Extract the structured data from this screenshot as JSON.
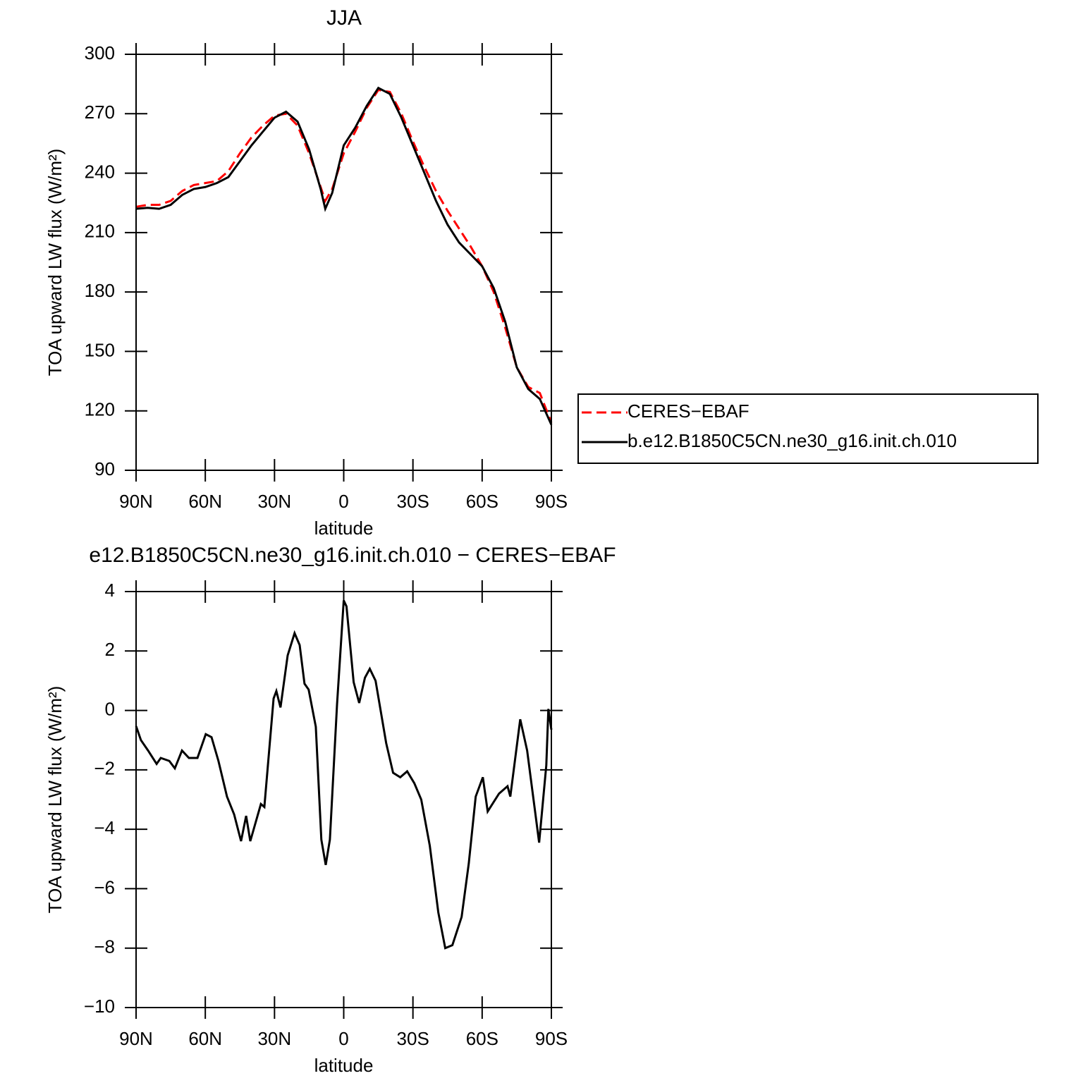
{
  "chart_data": [
    {
      "type": "line",
      "title": "JJA",
      "xlabel": "latitude",
      "ylabel": "TOA upward LW flux (W/m²)",
      "x": [
        90,
        85,
        80,
        75,
        70,
        65,
        60,
        55,
        50,
        45,
        40,
        35,
        30,
        25,
        20,
        15,
        10,
        8,
        5,
        0,
        -5,
        -10,
        -15,
        -20,
        -25,
        -30,
        -35,
        -40,
        -45,
        -50,
        -55,
        -60,
        -65,
        -70,
        -75,
        -80,
        -85,
        -90
      ],
      "xlim": [
        90,
        -90
      ],
      "xticks": [
        {
          "value": 90,
          "label": "90N"
        },
        {
          "value": 60,
          "label": "60N"
        },
        {
          "value": 30,
          "label": "30N"
        },
        0,
        {
          "value": -30,
          "label": "30S"
        },
        {
          "value": -60,
          "label": "60S"
        },
        {
          "value": -90,
          "label": "90S"
        }
      ],
      "ylim": [
        90,
        300
      ],
      "yticks": [
        90,
        120,
        150,
        180,
        210,
        240,
        270,
        300
      ],
      "legend": "right",
      "series": [
        {
          "name": "CERES−EBAF",
          "color": "#ff0000",
          "dashed": true,
          "values": [
            223,
            224,
            224,
            226,
            231,
            234,
            235,
            236,
            241,
            250,
            258,
            264,
            269,
            270,
            264,
            250,
            233,
            226,
            232,
            250,
            261,
            273,
            282,
            281,
            270,
            256,
            243,
            231,
            221,
            212,
            203,
            193,
            180,
            162,
            142,
            132,
            129,
            114
          ]
        },
        {
          "name": "b.e12.B1850C5CN.ne30_g16.init.ch.010",
          "color": "#000000",
          "dashed": false,
          "values": [
            222,
            222.5,
            222,
            224,
            229,
            232,
            233,
            235,
            238,
            246,
            254,
            261,
            268,
            271,
            266,
            252,
            232,
            222,
            230,
            254,
            263,
            274,
            283,
            280,
            268,
            254,
            240,
            226,
            214,
            205,
            199,
            193,
            182,
            165,
            142,
            131,
            126,
            113
          ]
        }
      ]
    },
    {
      "type": "line",
      "title": "e12.B1850C5CN.ne30_g16.init.ch.010 − CERES−EBAF",
      "xlabel": "latitude",
      "ylabel": "TOA upward LW flux (W/m²)",
      "x": [
        90,
        87.9,
        84.8,
        81.1,
        79.3,
        75.6,
        73.2,
        70.1,
        67.1,
        63.4,
        59.8,
        57.3,
        54.3,
        50.6,
        47.5,
        44.5,
        42.3,
        40.5,
        35.9,
        34.4,
        30.4,
        29.2,
        27.4,
        24.3,
        21.3,
        19.1,
        17.0,
        15.2,
        12.1,
        9.7,
        7.8,
        6.0,
        2.9,
        0,
        -1.2,
        -4.3,
        -6.7,
        -9.2,
        -11.3,
        -13.8,
        -18.4,
        -21.4,
        -24.5,
        -27.5,
        -30.6,
        -33.6,
        -37.3,
        -41.0,
        -44.0,
        -47.1,
        -51.1,
        -54.2,
        -57.2,
        -60.3,
        -62.4,
        -67.3,
        -71.0,
        -72.2,
        -76.5,
        -79.5,
        -84.7,
        -87.8,
        -88.7,
        -90
      ],
      "xlim": [
        90,
        -90
      ],
      "xticks": [
        {
          "value": 90,
          "label": "90N"
        },
        {
          "value": 60,
          "label": "60N"
        },
        {
          "value": 30,
          "label": "30N"
        },
        0,
        {
          "value": -30,
          "label": "30S"
        },
        {
          "value": -60,
          "label": "60S"
        },
        {
          "value": -90,
          "label": "90S"
        }
      ],
      "ylim": [
        -10,
        4
      ],
      "yticks": [
        {
          "value": -10,
          "label": "−10"
        },
        {
          "value": -8,
          "label": "−8"
        },
        {
          "value": -6,
          "label": "−6"
        },
        {
          "value": -4,
          "label": "−4"
        },
        {
          "value": -2,
          "label": "−2"
        },
        0,
        2,
        4
      ],
      "color": "#000000",
      "values": [
        -0.53,
        -1.0,
        -1.35,
        -1.8,
        -1.6,
        -1.7,
        -1.95,
        -1.35,
        -1.6,
        -1.6,
        -0.8,
        -0.9,
        -1.7,
        -2.9,
        -3.5,
        -4.4,
        -3.55,
        -4.4,
        -3.15,
        -3.25,
        0.4,
        0.65,
        0.1,
        1.85,
        2.6,
        2.2,
        0.9,
        0.7,
        -0.55,
        -4.35,
        -5.2,
        -4.35,
        0.2,
        3.7,
        3.5,
        0.95,
        0.25,
        1.1,
        1.4,
        1.0,
        -1.1,
        -2.1,
        -2.25,
        -2.05,
        -2.45,
        -3.0,
        -4.55,
        -6.8,
        -8.0,
        -7.9,
        -6.95,
        -5.15,
        -2.9,
        -2.25,
        -3.4,
        -2.8,
        -2.55,
        -2.9,
        -0.3,
        -1.35,
        -4.45,
        -1.85,
        0.05,
        -0.65
      ]
    }
  ]
}
